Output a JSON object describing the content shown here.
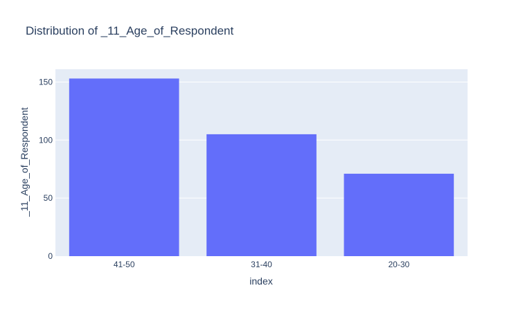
{
  "chart_data": {
    "type": "bar",
    "title": "Distribution of _11_Age_of_Respondent",
    "xlabel": "index",
    "ylabel": "_11_Age_of_Respondent",
    "categories": [
      "41-50",
      "31-40",
      "20-30"
    ],
    "values": [
      153,
      105,
      71
    ],
    "ylim": [
      0,
      161
    ],
    "yticks": [
      0,
      50,
      100,
      150
    ],
    "grid": true,
    "colors": {
      "bar": "#636efa",
      "plot_bg": "#e5ecf6",
      "grid": "#ffffff",
      "text": "#2a3f5f"
    }
  }
}
